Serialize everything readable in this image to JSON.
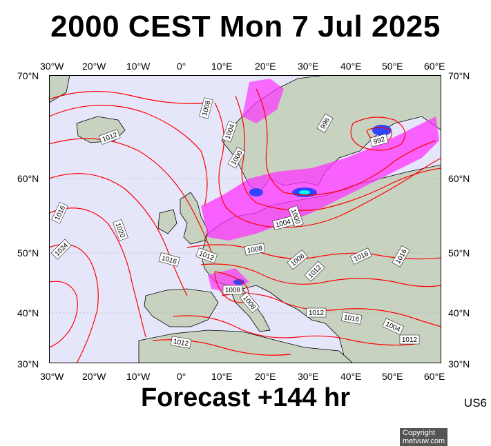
{
  "header": {
    "title": "2000 CEST Mon 7 Jul 2025"
  },
  "footer": {
    "forecast": "Forecast +144 hr",
    "region": "US6"
  },
  "map": {
    "copyright": "Copyright metvuw.com",
    "lon_labels": [
      "30°W",
      "20°W",
      "10°W",
      "0°",
      "10°E",
      "20°E",
      "30°E",
      "40°E",
      "50°E",
      "60°E"
    ],
    "lat_labels": [
      "70°N",
      "60°N",
      "50°N",
      "40°N",
      "30°N"
    ],
    "colors": {
      "ocean": "#e6e6fa",
      "land": "#c8d2c0",
      "isobar": "#ff0000",
      "rain": "#ff33ff",
      "rain_heavy": "#3344ff"
    },
    "isobar_labels": [
      "1008",
      "1012",
      "1004",
      "1000",
      "996",
      "992",
      "1016",
      "1020",
      "1024",
      "1004",
      "1000",
      "1012",
      "1016",
      "1008",
      "1008",
      "1012",
      "1016",
      "1016",
      "1008",
      "1008",
      "1012",
      "1016",
      "1004",
      "1012",
      "1012"
    ]
  }
}
